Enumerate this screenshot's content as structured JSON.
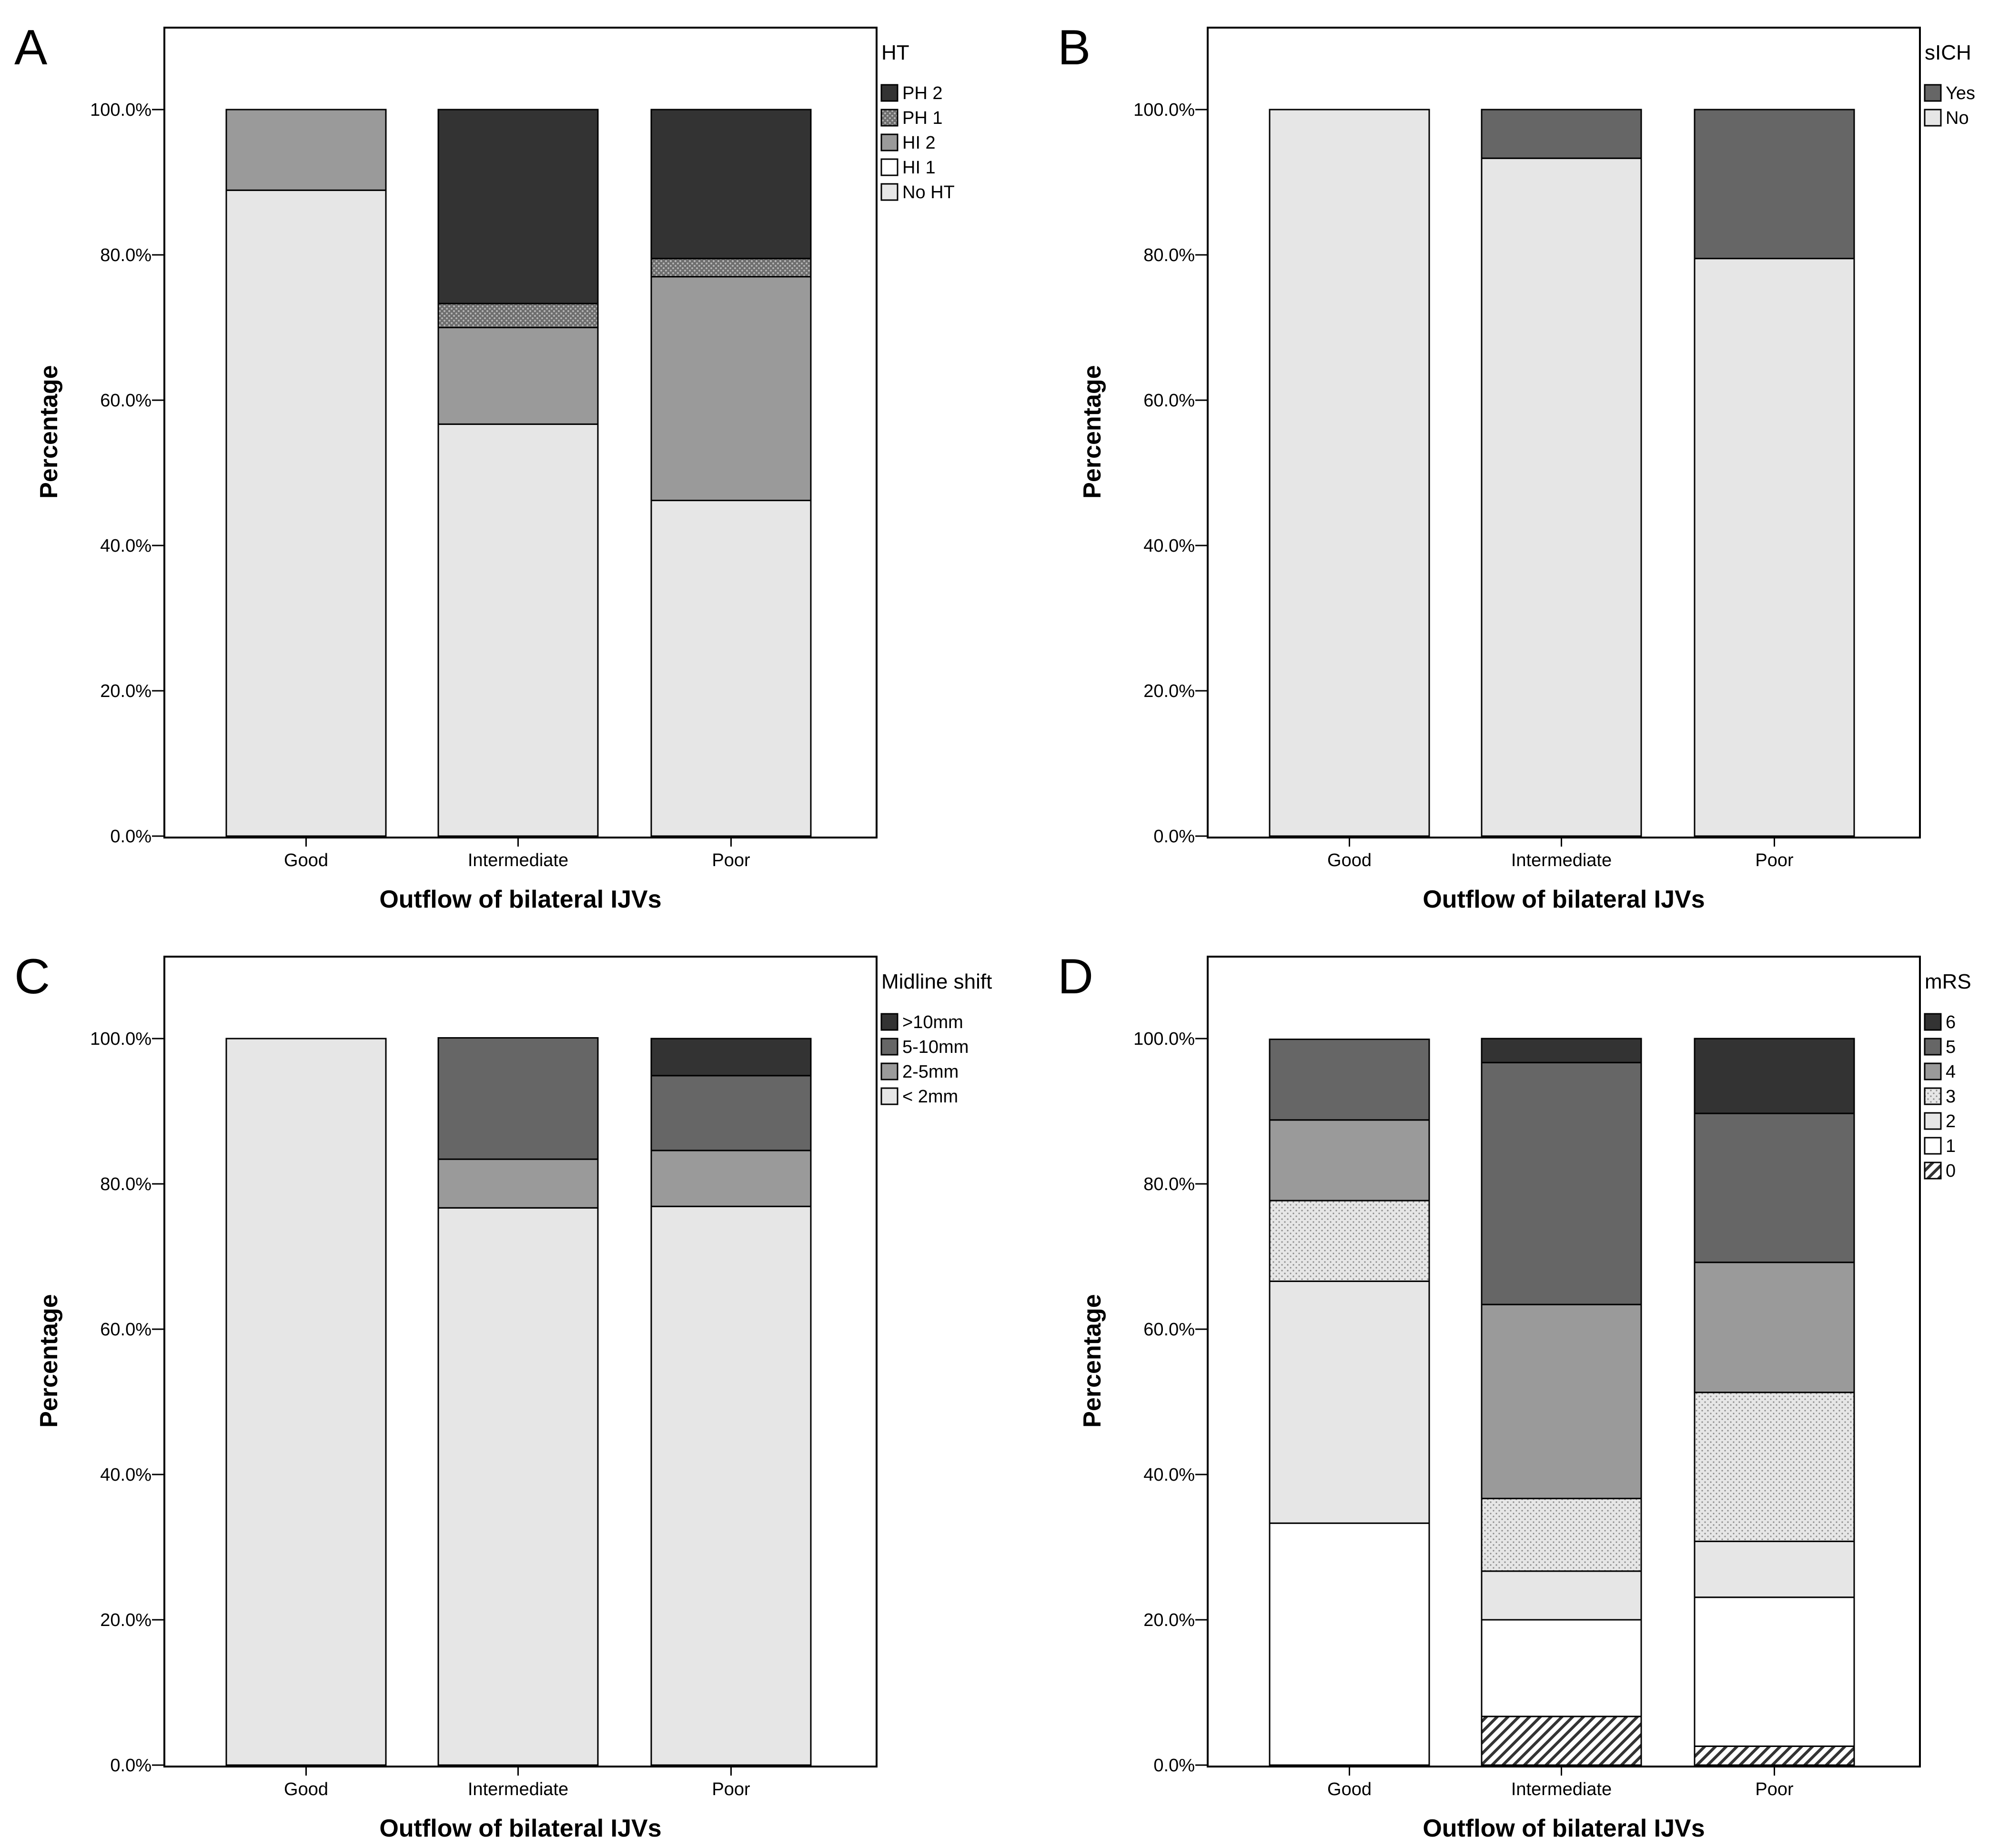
{
  "chart_data": [
    {
      "type": "bar",
      "stacked": true,
      "panel_label": "A",
      "xlabel": "Outflow of bilateral IJVs",
      "ylabel": "Percentage",
      "categories": [
        "Good",
        "Intermediate",
        "Poor"
      ],
      "ylim": [
        0,
        100
      ],
      "yticks": [
        "0.0%",
        "20.0%",
        "40.0%",
        "60.0%",
        "80.0%",
        "100.0%"
      ],
      "grid": false,
      "legend": {
        "title": "HT",
        "position": "right",
        "entries": [
          "PH 2",
          "PH 1",
          "HI 2",
          "HI 1",
          "No HT"
        ]
      },
      "series": [
        {
          "name": "No HT",
          "values": [
            88.9,
            56.7,
            46.2
          ],
          "fill": "#e6e6e6",
          "pattern": "none"
        },
        {
          "name": "HI 1",
          "values": [
            0,
            0,
            0
          ],
          "fill": "#ffffff",
          "pattern": "none"
        },
        {
          "name": "HI 2",
          "values": [
            11.1,
            13.3,
            30.8
          ],
          "fill": "#9a9a9a",
          "pattern": "none"
        },
        {
          "name": "PH 1",
          "values": [
            0,
            3.3,
            2.5
          ],
          "fill": "#6e6e6e",
          "pattern": "dots"
        },
        {
          "name": "PH 2",
          "values": [
            0,
            26.7,
            20.5
          ],
          "fill": "#333333",
          "pattern": "none"
        }
      ]
    },
    {
      "type": "bar",
      "stacked": true,
      "panel_label": "B",
      "xlabel": "Outflow of bilateral IJVs",
      "ylabel": "Percentage",
      "categories": [
        "Good",
        "Intermediate",
        "Poor"
      ],
      "ylim": [
        0,
        100
      ],
      "yticks": [
        "0.0%",
        "20.0%",
        "40.0%",
        "60.0%",
        "80.0%",
        "100.0%"
      ],
      "grid": false,
      "legend": {
        "title": "sICH",
        "position": "right",
        "entries": [
          "Yes",
          "No"
        ]
      },
      "series": [
        {
          "name": "No",
          "values": [
            100,
            93.3,
            79.5
          ],
          "fill": "#e6e6e6",
          "pattern": "none"
        },
        {
          "name": "Yes",
          "values": [
            0,
            6.7,
            20.5
          ],
          "fill": "#666666",
          "pattern": "none"
        }
      ]
    },
    {
      "type": "bar",
      "stacked": true,
      "panel_label": "C",
      "xlabel": "Outflow of bilateral IJVs",
      "ylabel": "Percentage",
      "categories": [
        "Good",
        "Intermediate",
        "Poor"
      ],
      "ylim": [
        0,
        100
      ],
      "yticks": [
        "0.0%",
        "20.0%",
        "40.0%",
        "60.0%",
        "80.0%",
        "100.0%"
      ],
      "grid": false,
      "legend": {
        "title": "Midline shift",
        "position": "right",
        "entries": [
          ">10mm",
          "5-10mm",
          "2-5mm",
          "< 2mm"
        ]
      },
      "series": [
        {
          "name": "< 2mm",
          "values": [
            100,
            76.7,
            76.9
          ],
          "fill": "#e6e6e6",
          "pattern": "none"
        },
        {
          "name": "2-5mm",
          "values": [
            0,
            6.7,
            7.7
          ],
          "fill": "#9a9a9a",
          "pattern": "none"
        },
        {
          "name": "5-10mm",
          "values": [
            0,
            16.7,
            10.3
          ],
          "fill": "#666666",
          "pattern": "none"
        },
        {
          "name": ">10mm",
          "values": [
            0,
            0,
            5.1
          ],
          "fill": "#333333",
          "pattern": "none"
        }
      ]
    },
    {
      "type": "bar",
      "stacked": true,
      "panel_label": "D",
      "xlabel": "Outflow of bilateral IJVs",
      "ylabel": "Percentage",
      "categories": [
        "Good",
        "Intermediate",
        "Poor"
      ],
      "ylim": [
        0,
        100
      ],
      "yticks": [
        "0.0%",
        "20.0%",
        "40.0%",
        "60.0%",
        "80.0%",
        "100.0%"
      ],
      "grid": false,
      "legend": {
        "title": "mRS",
        "position": "right",
        "entries": [
          "6",
          "5",
          "4",
          "3",
          "2",
          "1",
          "0"
        ]
      },
      "series": [
        {
          "name": "0",
          "values": [
            0,
            6.7,
            2.6
          ],
          "fill": "#ffffff",
          "pattern": "hatch"
        },
        {
          "name": "1",
          "values": [
            33.3,
            13.3,
            20.5
          ],
          "fill": "#ffffff",
          "pattern": "none"
        },
        {
          "name": "2",
          "values": [
            33.3,
            6.7,
            7.7
          ],
          "fill": "#e6e6e6",
          "pattern": "none"
        },
        {
          "name": "3",
          "values": [
            11.1,
            10.0,
            20.5
          ],
          "fill": "#e6e6e6",
          "pattern": "dots-light"
        },
        {
          "name": "4",
          "values": [
            11.1,
            26.7,
            17.9
          ],
          "fill": "#9a9a9a",
          "pattern": "none"
        },
        {
          "name": "5",
          "values": [
            11.1,
            33.3,
            20.5
          ],
          "fill": "#666666",
          "pattern": "none"
        },
        {
          "name": "6",
          "values": [
            0,
            3.3,
            10.3
          ],
          "fill": "#333333",
          "pattern": "none"
        }
      ]
    }
  ]
}
